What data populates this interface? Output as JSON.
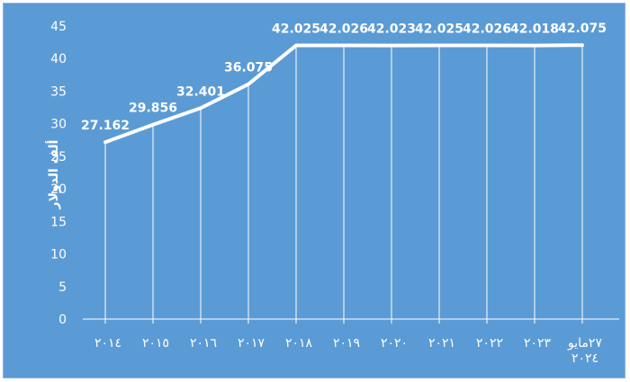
{
  "chart_data": {
    "type": "line",
    "title": "",
    "xlabel": "",
    "ylabel": "ألف الدولار",
    "categories": [
      "٢٠١٤",
      "٢٠١٥",
      "٢٠١٦",
      "٢٠١٧",
      "٢٠١٨",
      "٢٠١٩",
      "٢٠٢٠",
      "٢٠٢١",
      "٢٠٢٢",
      "٢٠٢٣",
      "٢٧مايو ٢٠٢٤"
    ],
    "values": [
      27.162,
      29.856,
      32.401,
      36.075,
      42.025,
      42.026,
      42.023,
      42.025,
      42.026,
      42.018,
      42.075
    ],
    "data_labels": [
      "27.162",
      "29.856",
      "32.401",
      "36.075",
      "42.025",
      "42.026",
      "42.023",
      "42.025",
      "42.026",
      "42.018",
      "42.075"
    ],
    "ylim": [
      0,
      45
    ],
    "yticks": [
      0,
      5,
      10,
      15,
      20,
      25,
      30,
      35,
      40,
      45
    ],
    "grid": "vertical",
    "legend": "none",
    "colors": {
      "background": "#5b9bd5",
      "line": "#ffffff",
      "grid": "#ffffff",
      "text": "#ffffff"
    }
  }
}
